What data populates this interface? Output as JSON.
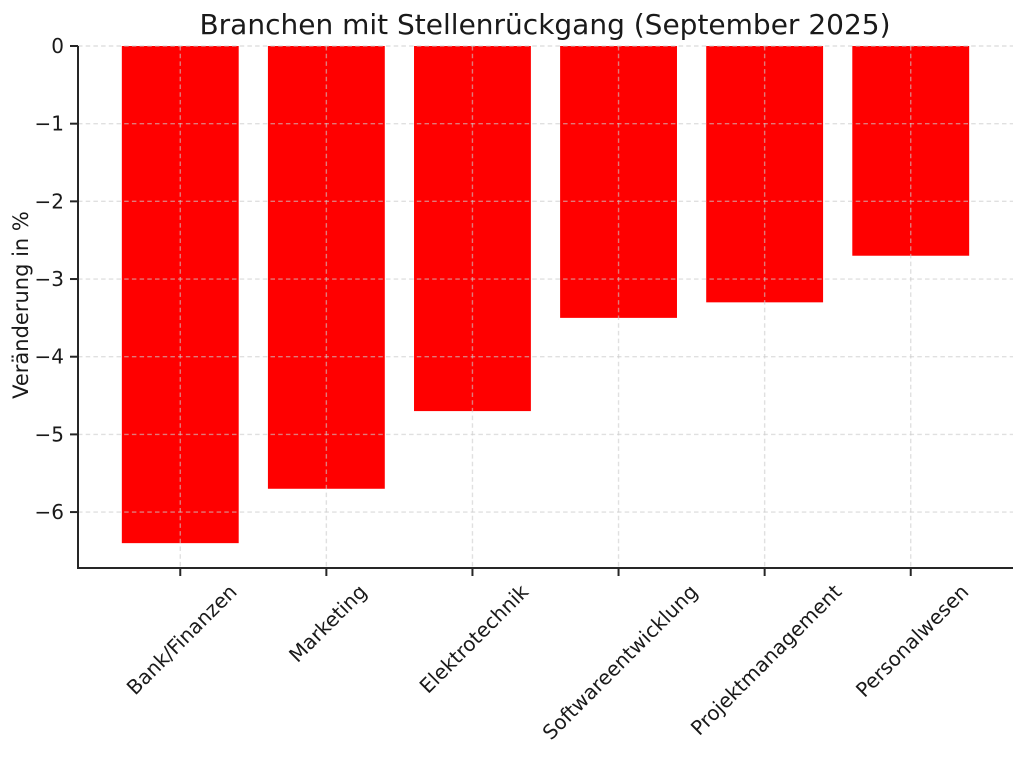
{
  "chart_data": {
    "type": "bar",
    "title": "Branchen mit Stellenrückgang (September 2025)",
    "ylabel": "Veränderung in %",
    "xlabel": "",
    "categories": [
      "Bank/Finanzen",
      "Marketing",
      "Elektrotechnik",
      "Softwareentwicklung",
      "Projektmanagement",
      "Personalwesen"
    ],
    "values": [
      -6.4,
      -5.7,
      -4.7,
      -3.5,
      -3.3,
      -2.7
    ],
    "ylim": [
      -6.72,
      0
    ],
    "yticks": [
      0,
      -1,
      -2,
      -3,
      -4,
      -5,
      -6
    ],
    "bar_color": "#ff0000",
    "bar_width_ratio": 0.8,
    "grid": true,
    "grid_style": "dashed",
    "grid_on_top": true,
    "legend_position": "none",
    "x_tick_label_rotation_deg": 45
  },
  "colors": {
    "bar": "#ff0000",
    "grid": "#cccccc",
    "axis": "#262626",
    "text": "#1a1a1a",
    "background": "#ffffff"
  }
}
